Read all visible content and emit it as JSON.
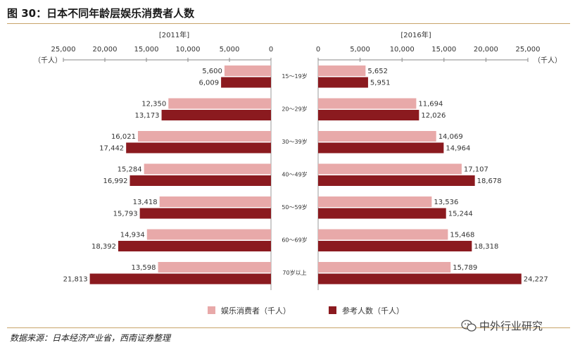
{
  "figure_title": "图 30：日本不同年龄层娱乐消费者人数",
  "source_note": "数据来源：日本经济产业省，西南证券整理",
  "watermark_text": "中外行业研究",
  "watermark_icon": "wechat-icon",
  "colors": {
    "light_series": "#e8a9a9",
    "dark_series": "#8b1a1f",
    "rule": "#c8a46a"
  },
  "chart_data": [
    {
      "type": "bar",
      "orientation": "horizontal",
      "direction": "right-to-left",
      "title": "[2011年]",
      "unit": "（千人）",
      "xlim": [
        0,
        25000
      ],
      "ticks": [
        "25,000",
        "20,000",
        "15,000",
        "10,000",
        "5,000",
        "0"
      ],
      "tick_values": [
        25000,
        20000,
        15000,
        10000,
        5000,
        0
      ],
      "categories": [
        "15～19岁",
        "20～29岁",
        "30～39岁",
        "40～49岁",
        "50～59岁",
        "60～69岁",
        "70岁以上"
      ],
      "series": [
        {
          "name": "娱乐消费者（千人）",
          "values": [
            5600,
            12350,
            16021,
            15284,
            13418,
            14934,
            13598
          ],
          "labels": [
            "5,600",
            "12,350",
            "16,021",
            "15,284",
            "13,418",
            "14,934",
            "13,598"
          ]
        },
        {
          "name": "参考人数（千人）",
          "values": [
            6009,
            13173,
            17442,
            16992,
            15793,
            18392,
            21813
          ],
          "labels": [
            "6,009",
            "13,173",
            "17,442",
            "16,992",
            "15,793",
            "18,392",
            "21,813"
          ]
        }
      ]
    },
    {
      "type": "bar",
      "orientation": "horizontal",
      "direction": "left-to-right",
      "title": "[2016年]",
      "unit": "（千人）",
      "xlim": [
        0,
        25000
      ],
      "ticks": [
        "0",
        "5,000",
        "10,000",
        "15,000",
        "20,000",
        "25,000"
      ],
      "tick_values": [
        0,
        5000,
        10000,
        15000,
        20000,
        25000
      ],
      "categories": [
        "15～19岁",
        "20～29岁",
        "30～39岁",
        "40～49岁",
        "50～59岁",
        "60～69岁",
        "70岁以上"
      ],
      "series": [
        {
          "name": "娱乐消费者（千人）",
          "values": [
            5652,
            11694,
            14069,
            17107,
            13536,
            15468,
            15789
          ],
          "labels": [
            "5,652",
            "11,694",
            "14,069",
            "17,107",
            "13,536",
            "15,468",
            "15,789"
          ]
        },
        {
          "name": "参考人数（千人）",
          "values": [
            5951,
            12026,
            14964,
            18678,
            15244,
            18318,
            24227
          ],
          "labels": [
            "5,951",
            "12,026",
            "14,964",
            "18,678",
            "15,244",
            "18,318",
            "24,227"
          ]
        }
      ]
    }
  ],
  "legend": [
    {
      "label": "娱乐消费者（千人）",
      "color": "#e8a9a9"
    },
    {
      "label": "参考人数（千人）",
      "color": "#8b1a1f"
    }
  ]
}
